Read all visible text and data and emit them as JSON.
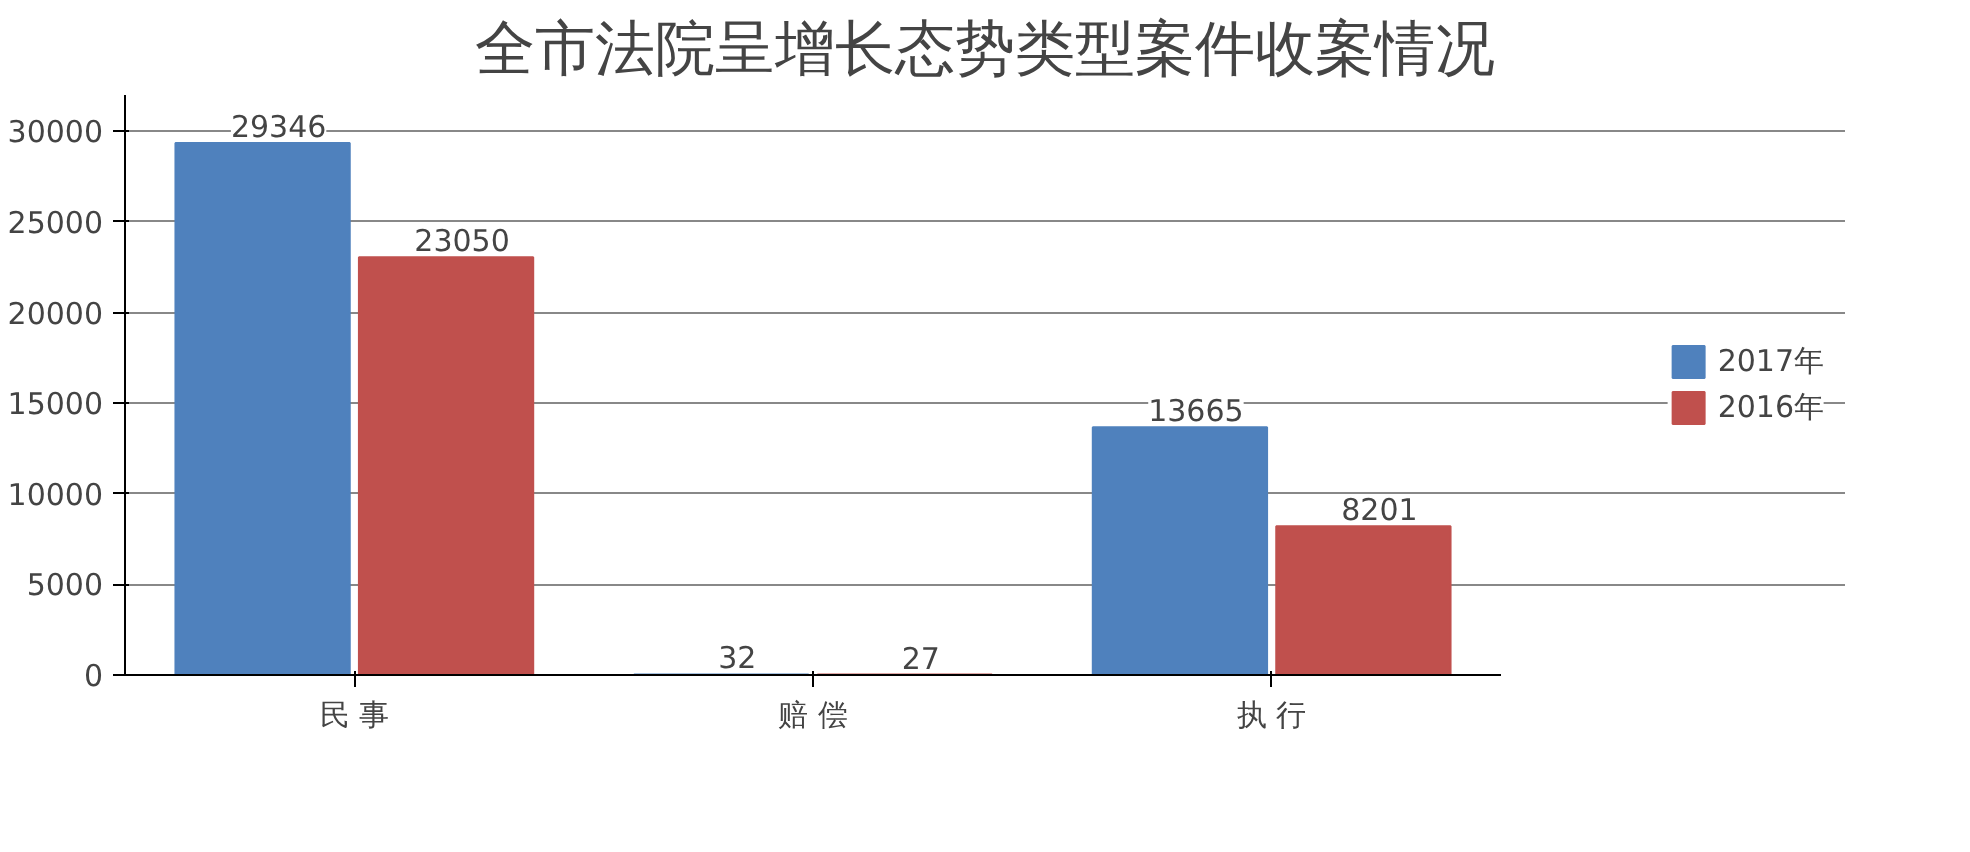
{
  "chart_data": {
    "type": "bar",
    "title": "全市法院呈增长态势类型案件收案情况",
    "categories": [
      "民 事",
      "赔 偿",
      "执 行"
    ],
    "series": [
      {
        "name": "2017年",
        "color": "#4f81bd",
        "values": [
          29346,
          32,
          13665
        ]
      },
      {
        "name": "2016年",
        "color": "#c0504d",
        "values": [
          23050,
          27,
          8201
        ]
      }
    ],
    "ylim": [
      0,
      32000
    ],
    "yticks": [
      0,
      5000,
      10000,
      15000,
      20000,
      25000,
      30000
    ],
    "grid": "y",
    "legend": "right",
    "data_labels": true
  }
}
